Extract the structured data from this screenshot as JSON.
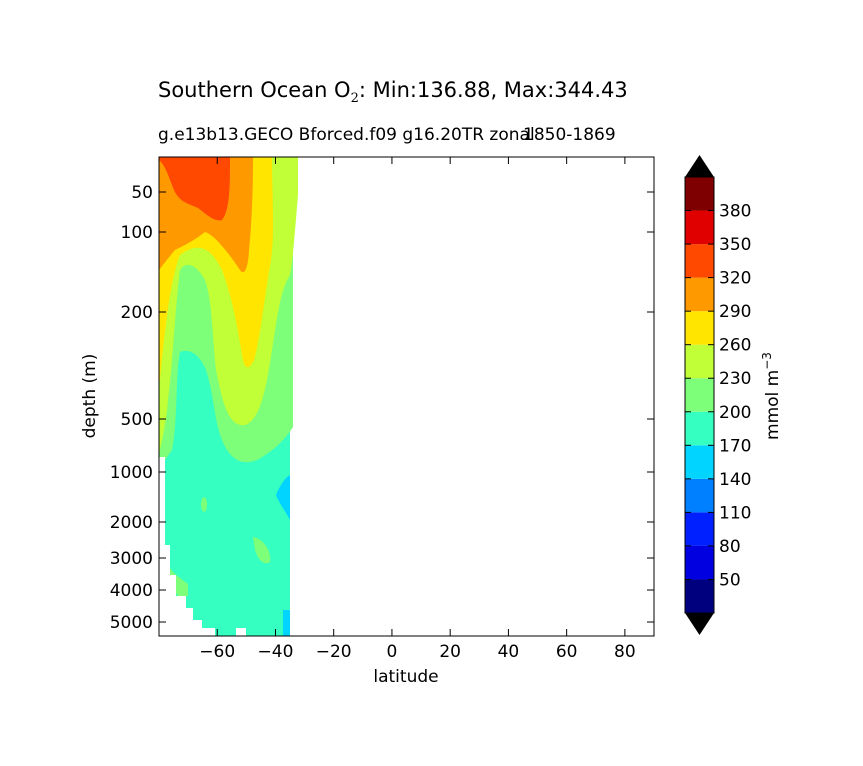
{
  "chart_data": {
    "type": "contour",
    "title_main": "Southern Ocean O",
    "title_sub": "2",
    "title_rest": ": Min:136.88, Max:344.43",
    "subtitle": "g.e13b13.GECO Bforced.f09 g16.20TR zonal",
    "subtitle_years": "1850-1869",
    "xlabel": "latitude",
    "ylabel": "depth (m)",
    "xlim": [
      -80,
      90
    ],
    "x_ticks": [
      -60,
      -40,
      -20,
      0,
      20,
      40,
      60,
      80
    ],
    "x_tick_labels": [
      "−60",
      "−40",
      "−20",
      "0",
      "20",
      "40",
      "60",
      "80"
    ],
    "y_ticks": [
      50,
      100,
      200,
      500,
      1000,
      2000,
      3000,
      4000,
      5000
    ],
    "y_tick_labels": [
      "50",
      "100",
      "200",
      "500",
      "1000",
      "2000",
      "3000",
      "4000",
      "5000"
    ],
    "y_axis_inverted": true,
    "colorbar": {
      "label": "mmol m",
      "label_exponent": "−3",
      "levels": [
        20,
        50,
        80,
        110,
        140,
        170,
        200,
        230,
        260,
        290,
        320,
        350,
        380,
        410
      ],
      "tick_labels": [
        "50",
        "80",
        "110",
        "140",
        "170",
        "200",
        "230",
        "260",
        "290",
        "320",
        "350",
        "380"
      ],
      "colors": [
        "#00007f",
        "#0000e0",
        "#0020ff",
        "#0080ff",
        "#00d4ff",
        "#35ffc1",
        "#7dff7a",
        "#c1ff36",
        "#ffe500",
        "#ff9900",
        "#ff4800",
        "#e00000",
        "#7f0000"
      ],
      "extend": "both",
      "extension_color": "#000000"
    },
    "data_extent_lat": [
      -80,
      -34
    ],
    "observations": [
      {
        "lat": -70,
        "depth": 50,
        "value_band": "320-350"
      },
      {
        "lat": -45,
        "depth": 100,
        "value_band": "290-320"
      },
      {
        "lat": -40,
        "depth": 200,
        "value_band": "260-290"
      },
      {
        "lat": -65,
        "depth": 200,
        "value_band": "230-260"
      },
      {
        "lat": -55,
        "depth": 300,
        "value_band": "200-230"
      },
      {
        "lat": -60,
        "depth": 1500,
        "value_band": "170-200"
      },
      {
        "lat": -35,
        "depth": 1500,
        "value_band": "140-170"
      },
      {
        "lat": -75,
        "depth": 4000,
        "value_band": "200-230"
      }
    ]
  }
}
